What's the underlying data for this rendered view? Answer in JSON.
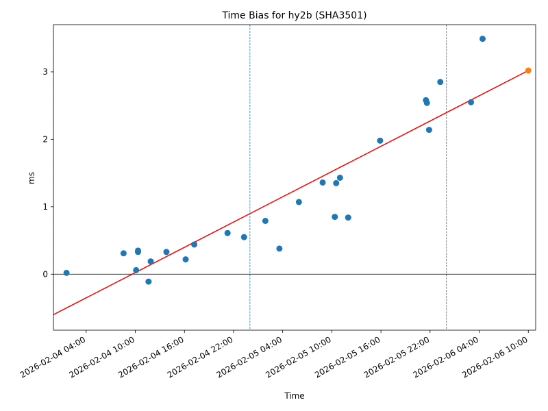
{
  "chart_data": {
    "type": "scatter",
    "title": "Time Bias for hy2b (SHA3501)",
    "xlabel": "Time",
    "ylabel": "ms",
    "x_axis_kind": "datetime",
    "xlim": [
      "2026-02-04T00:00",
      "2026-02-06T10:54"
    ],
    "ylim": [
      -0.83,
      3.7
    ],
    "x_ticks": [
      {
        "value": "2026-02-04T04:00",
        "label": "2026-02-04 04:00"
      },
      {
        "value": "2026-02-04T10:00",
        "label": "2026-02-04 10:00"
      },
      {
        "value": "2026-02-04T16:00",
        "label": "2026-02-04 16:00"
      },
      {
        "value": "2026-02-04T22:00",
        "label": "2026-02-04 22:00"
      },
      {
        "value": "2026-02-05T04:00",
        "label": "2026-02-05 04:00"
      },
      {
        "value": "2026-02-05T10:00",
        "label": "2026-02-05 10:00"
      },
      {
        "value": "2026-02-05T16:00",
        "label": "2026-02-05 16:00"
      },
      {
        "value": "2026-02-05T22:00",
        "label": "2026-02-05 22:00"
      },
      {
        "value": "2026-02-06T04:00",
        "label": "2026-02-06 04:00"
      },
      {
        "value": "2026-02-06T10:00",
        "label": "2026-02-06 10:00"
      }
    ],
    "y_ticks": [
      {
        "value": 0,
        "label": "0"
      },
      {
        "value": 1,
        "label": "1"
      },
      {
        "value": 2,
        "label": "2"
      },
      {
        "value": 3,
        "label": "3"
      }
    ],
    "points": [
      {
        "x": "2026-02-04T01:36",
        "y": 0.02
      },
      {
        "x": "2026-02-04T08:34",
        "y": 0.31
      },
      {
        "x": "2026-02-04T10:06",
        "y": 0.06
      },
      {
        "x": "2026-02-04T10:20",
        "y": 0.35
      },
      {
        "x": "2026-02-04T10:20",
        "y": 0.33
      },
      {
        "x": "2026-02-04T11:37",
        "y": -0.11
      },
      {
        "x": "2026-02-04T11:53",
        "y": 0.19
      },
      {
        "x": "2026-02-04T13:48",
        "y": 0.33
      },
      {
        "x": "2026-02-04T16:09",
        "y": 0.22
      },
      {
        "x": "2026-02-04T17:12",
        "y": 0.44
      },
      {
        "x": "2026-02-04T21:16",
        "y": 0.61
      },
      {
        "x": "2026-02-04T23:17",
        "y": 0.55
      },
      {
        "x": "2026-02-05T01:53",
        "y": 0.79
      },
      {
        "x": "2026-02-05T03:36",
        "y": 0.38
      },
      {
        "x": "2026-02-05T05:59",
        "y": 1.07
      },
      {
        "x": "2026-02-05T08:53",
        "y": 1.36
      },
      {
        "x": "2026-02-05T10:22",
        "y": 0.85
      },
      {
        "x": "2026-02-05T10:32",
        "y": 1.35
      },
      {
        "x": "2026-02-05T11:00",
        "y": 1.43
      },
      {
        "x": "2026-02-05T12:00",
        "y": 0.84
      },
      {
        "x": "2026-02-05T15:54",
        "y": 1.98
      },
      {
        "x": "2026-02-05T21:30",
        "y": 2.58
      },
      {
        "x": "2026-02-05T21:37",
        "y": 2.54
      },
      {
        "x": "2026-02-05T21:53",
        "y": 2.14
      },
      {
        "x": "2026-02-05T23:15",
        "y": 2.85
      },
      {
        "x": "2026-02-06T03:00",
        "y": 2.55
      },
      {
        "x": "2026-02-06T04:25",
        "y": 3.49
      }
    ],
    "highlight_point": {
      "x": "2026-02-06T10:00",
      "y": 3.02,
      "color": "#ff7f0e"
    },
    "fit_line": [
      {
        "x": "2026-02-04T00:00",
        "y": -0.6
      },
      {
        "x": "2026-02-06T10:00",
        "y": 3.02
      }
    ],
    "vertical_markers": [
      "2026-02-04T00:00",
      "2026-02-05T00:00",
      "2026-02-06T00:00"
    ],
    "horizontal_reference": 0,
    "colors": {
      "points": "#1f77b4",
      "fit_line": "#ff0000",
      "markers": "#1f77b4",
      "reference": "#000000"
    },
    "grid": false,
    "legend": "none"
  }
}
